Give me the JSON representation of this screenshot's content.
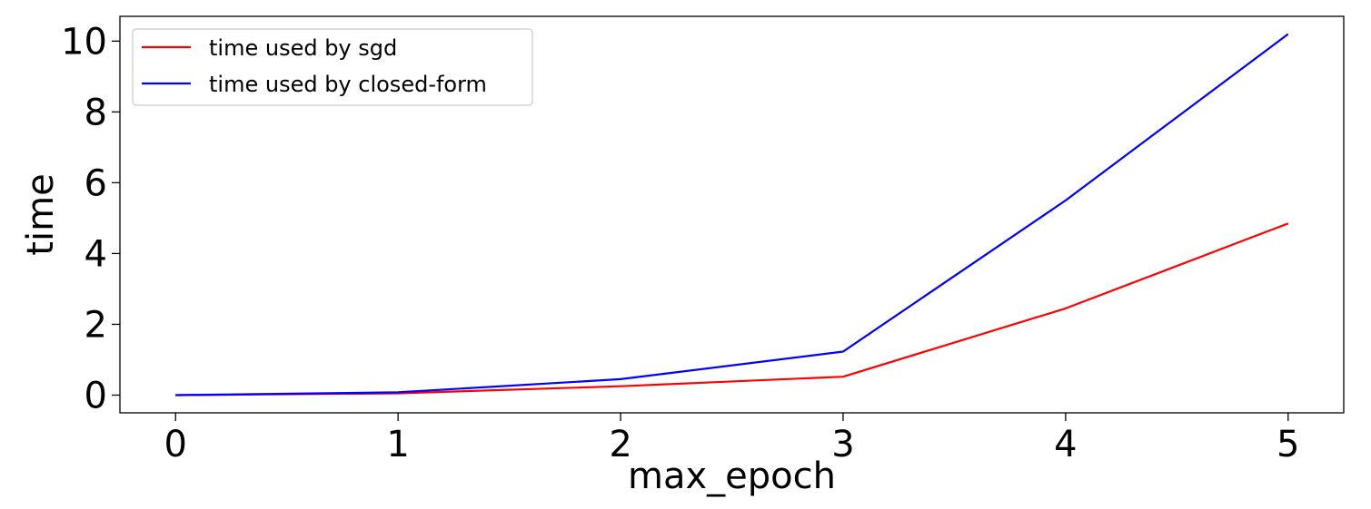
{
  "chart_data": {
    "type": "line",
    "title": "",
    "xlabel": "max_epoch",
    "ylabel": "time",
    "x": [
      0,
      1,
      2,
      3,
      4,
      5
    ],
    "xlim": [
      -0.25,
      5.25
    ],
    "ylim": [
      -0.5,
      10.7
    ],
    "xticks": [
      0,
      1,
      2,
      3,
      4,
      5
    ],
    "yticks": [
      0,
      2,
      4,
      6,
      8,
      10
    ],
    "grid": false,
    "legend_position": "upper-left",
    "series": [
      {
        "name": "time used by sgd",
        "color": "#ff0000",
        "values": [
          0.0,
          0.05,
          0.25,
          0.52,
          2.45,
          4.85
        ]
      },
      {
        "name": "time used by closed-form",
        "color": "#0000ff",
        "values": [
          0.0,
          0.08,
          0.45,
          1.23,
          5.5,
          10.2
        ]
      }
    ]
  }
}
